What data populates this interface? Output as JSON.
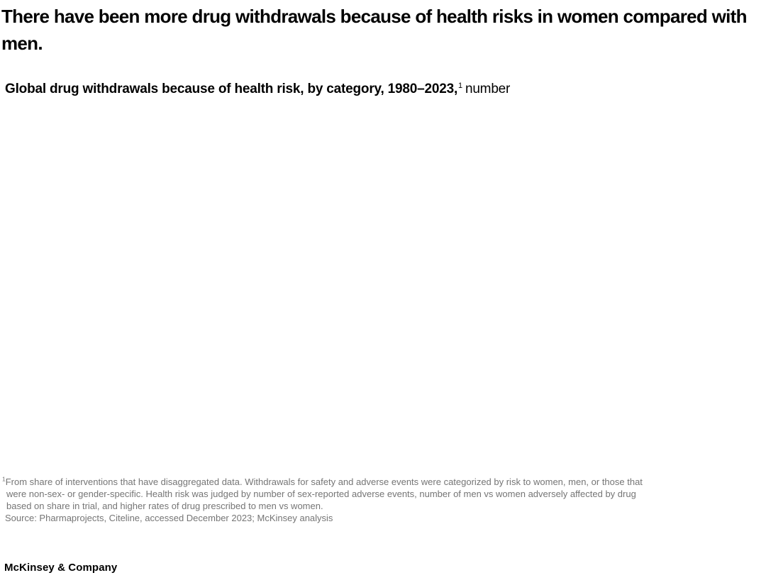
{
  "header": {
    "title": "There have been more drug withdrawals because of health risks in women compared with men."
  },
  "subtitle": {
    "bold": "Global drug withdrawals because of health risk, by category, 1980–2023,",
    "superscript": "1",
    "unit": "number"
  },
  "chart_data": {
    "type": "bar",
    "title": "Global drug withdrawals because of health risk, by category, 1980–2023, number",
    "categories": [],
    "series": [],
    "note": "plot area is blank in the screenshot — no chart graphics, axes, or data points are rendered"
  },
  "footnote": {
    "marker": "1",
    "lines": [
      "From share of interventions that have disaggregated data. Withdrawals for safety and adverse events were categorized by risk to women, men, or those that",
      "were non-sex- or gender-specific. Health risk was judged by number of sex-reported adverse events, number of men vs women adversely affected by drug",
      "based on share in trial, and higher rates of drug prescribed to men vs women."
    ],
    "source": "Source: Pharmaprojects, Citeline, accessed December 2023; McKinsey analysis"
  },
  "footer": {
    "brand": "McKinsey & Company"
  },
  "colors": {
    "background": "#ffffff",
    "title_text": "#000000",
    "footnote_gray": "#757575"
  }
}
